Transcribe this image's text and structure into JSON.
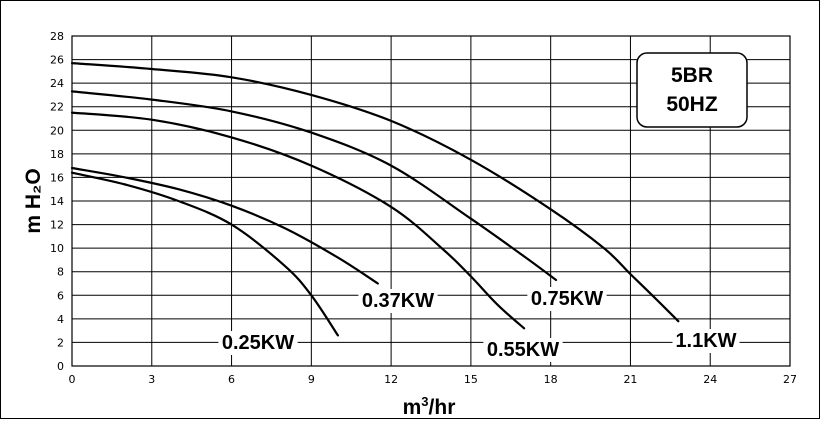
{
  "chart_data": {
    "type": "line",
    "xlabel_main": "m",
    "xlabel_sup": "3",
    "xlabel_tail": "/hr",
    "ylabel": "m H₂O",
    "xlim": [
      0,
      27
    ],
    "ylim": [
      0,
      28
    ],
    "x_ticks": [
      0,
      3,
      6,
      9,
      12,
      15,
      18,
      21,
      24,
      27
    ],
    "y_ticks": [
      0,
      2,
      4,
      6,
      8,
      10,
      12,
      14,
      16,
      18,
      20,
      22,
      24,
      26,
      28
    ],
    "grid": true,
    "annotation_box": {
      "line1": "5BR",
      "line2": "50HZ"
    },
    "series": [
      {
        "name": "0.25KW",
        "x": [
          0,
          2,
          4,
          6,
          8,
          9,
          10
        ],
        "y": [
          16.4,
          15.4,
          14.0,
          12.0,
          8.5,
          6.0,
          2.6
        ]
      },
      {
        "name": "0.37KW",
        "x": [
          0,
          2,
          4,
          6,
          8,
          10,
          11.5
        ],
        "y": [
          16.8,
          16.0,
          15.0,
          13.6,
          11.7,
          9.2,
          7.0
        ]
      },
      {
        "name": "0.55KW",
        "x": [
          0,
          3,
          6,
          9,
          12,
          14,
          15,
          16,
          17
        ],
        "y": [
          21.5,
          20.9,
          19.4,
          17.0,
          13.5,
          9.8,
          7.6,
          5.2,
          3.2
        ]
      },
      {
        "name": "0.75KW",
        "x": [
          0,
          3,
          6,
          9,
          12,
          15,
          17,
          18.2
        ],
        "y": [
          23.3,
          22.6,
          21.6,
          19.8,
          17.0,
          12.5,
          9.3,
          7.3
        ]
      },
      {
        "name": "1.1KW",
        "x": [
          0,
          3,
          6,
          9,
          12,
          15,
          18,
          20,
          21,
          22,
          22.8
        ],
        "y": [
          25.7,
          25.2,
          24.5,
          23.0,
          20.8,
          17.5,
          13.3,
          10.0,
          7.8,
          5.6,
          3.8
        ]
      }
    ],
    "labels": [
      {
        "text": "0.25KW",
        "series": "0.25KW"
      },
      {
        "text": "0.37KW",
        "series": "0.37KW"
      },
      {
        "text": "0.55KW",
        "series": "0.55KW"
      },
      {
        "text": "0.75KW",
        "series": "0.75KW"
      },
      {
        "text": "1.1KW",
        "series": "1.1KW"
      }
    ]
  }
}
